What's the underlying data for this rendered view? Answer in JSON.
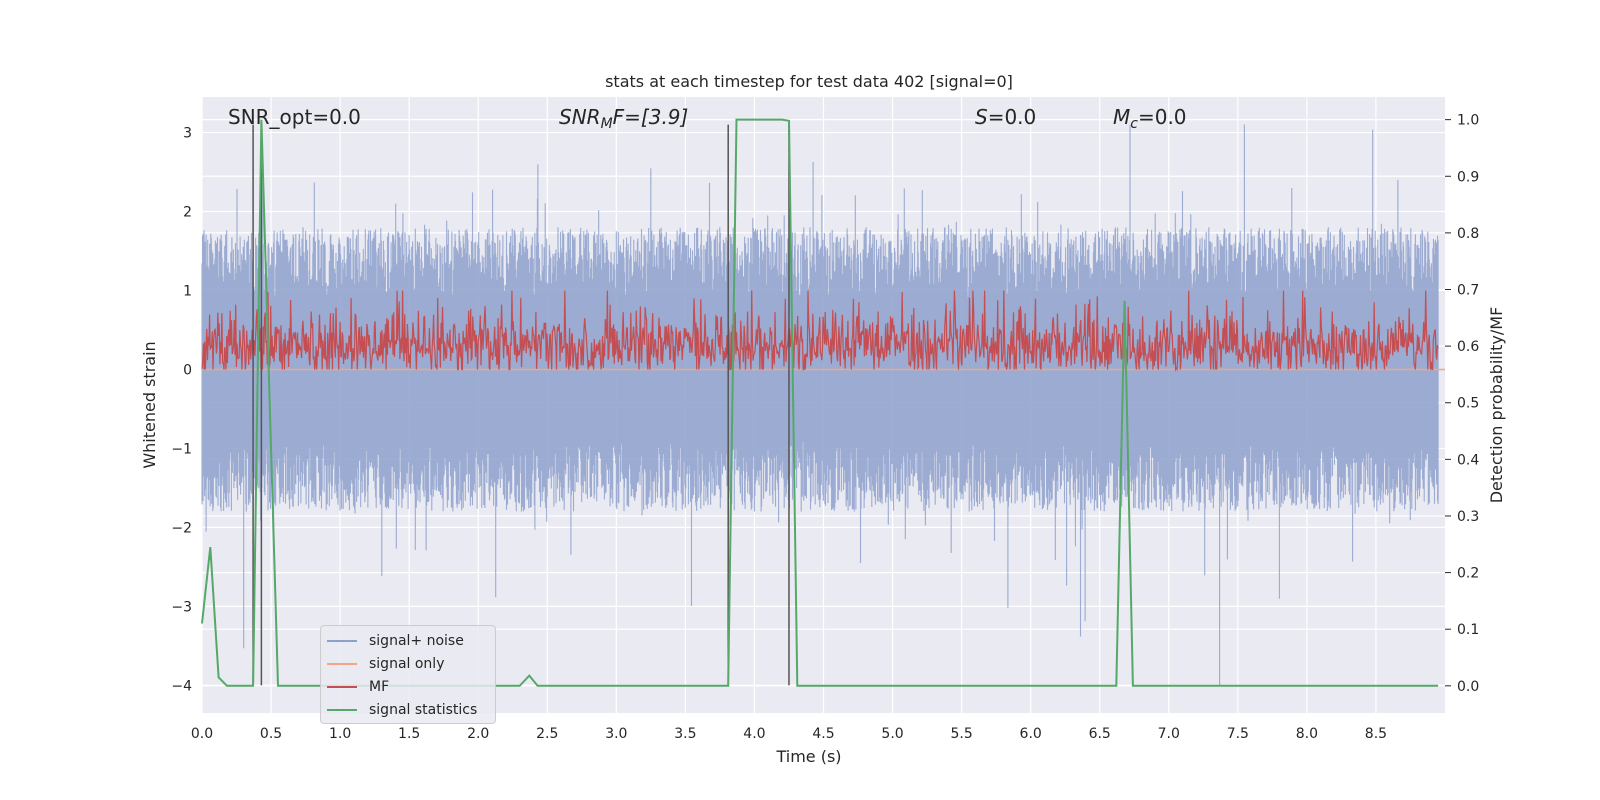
{
  "chart_data": {
    "type": "line",
    "title": "stats at each timestep for test data 402 [signal=0]",
    "xlabel": "Time (s)",
    "ylabel_left": "Whitened strain",
    "ylabel_right": "Detection probability/MF",
    "xlim": [
      0.0,
      9.0
    ],
    "ylim_left": [
      -4.35,
      3.45
    ],
    "ylim_right": [
      -0.048,
      1.04
    ],
    "x_ticks": [
      "0.0",
      "0.5",
      "1.0",
      "1.5",
      "2.0",
      "2.5",
      "3.0",
      "3.5",
      "4.0",
      "4.5",
      "5.0",
      "5.5",
      "6.0",
      "6.5",
      "7.0",
      "7.5",
      "8.0",
      "8.5"
    ],
    "y_left_ticks": [
      "3",
      "2",
      "1",
      "0",
      "−1",
      "−2",
      "−3",
      "−4"
    ],
    "y_right_ticks": [
      "1.0",
      "0.9",
      "0.8",
      "0.7",
      "0.6",
      "0.5",
      "0.4",
      "0.3",
      "0.2",
      "0.1",
      "0.0"
    ],
    "grid": true,
    "legend_position": "lower-left",
    "annotations": {
      "snr_opt": "SNR_opt=0.0",
      "snr_mf_base": "SNR",
      "snr_mf_sub": "M",
      "snr_mf_rest": "F=[3.9]",
      "s_var": "S",
      "s_rest": "=0.0",
      "mc_var": "M",
      "mc_sub": "c",
      "mc_rest": "=0.0"
    },
    "noise_band": {
      "axis": "left",
      "description_range": [
        -4.0,
        3.1
      ],
      "typical_range": [
        -1.6,
        1.6
      ]
    },
    "mf_band": {
      "axis": "left",
      "range": [
        0.0,
        1.0
      ],
      "typical_range": [
        0.1,
        0.6
      ]
    },
    "vertical_markers": [
      0.37,
      0.43,
      3.81,
      4.25
    ],
    "series": [
      {
        "name": "signal+ noise",
        "axis": "left",
        "color": "#8da0cb"
      },
      {
        "name": "signal only",
        "axis": "left",
        "color": "#f4a582",
        "values": [
          [
            0.0,
            0.0
          ],
          [
            9.0,
            0.0
          ]
        ]
      },
      {
        "name": "MF",
        "axis": "left",
        "color": "#c44e52"
      },
      {
        "name": "signal statistics",
        "axis": "right",
        "color": "#55a868",
        "points": [
          [
            0.0,
            0.11
          ],
          [
            0.06,
            0.245
          ],
          [
            0.12,
            0.015
          ],
          [
            0.18,
            0.0
          ],
          [
            0.37,
            0.0
          ],
          [
            0.43,
            1.0
          ],
          [
            0.55,
            0.0
          ],
          [
            1.0,
            0.0
          ],
          [
            1.5,
            0.0
          ],
          [
            2.0,
            0.0
          ],
          [
            2.3,
            0.0
          ],
          [
            2.37,
            0.018
          ],
          [
            2.43,
            0.0
          ],
          [
            3.0,
            0.0
          ],
          [
            3.81,
            0.0
          ],
          [
            3.87,
            1.0
          ],
          [
            4.0,
            1.0
          ],
          [
            4.2,
            1.0
          ],
          [
            4.25,
            0.998
          ],
          [
            4.31,
            0.0
          ],
          [
            5.0,
            0.0
          ],
          [
            6.0,
            0.0
          ],
          [
            6.62,
            0.0
          ],
          [
            6.68,
            0.68
          ],
          [
            6.74,
            0.0
          ],
          [
            7.5,
            0.0
          ],
          [
            8.5,
            0.0
          ],
          [
            8.95,
            0.0
          ]
        ]
      }
    ],
    "colors": {
      "plot_bg": "#eaeaf2",
      "grid": "#ffffff",
      "marker": "#555555",
      "text": "#262626"
    }
  }
}
